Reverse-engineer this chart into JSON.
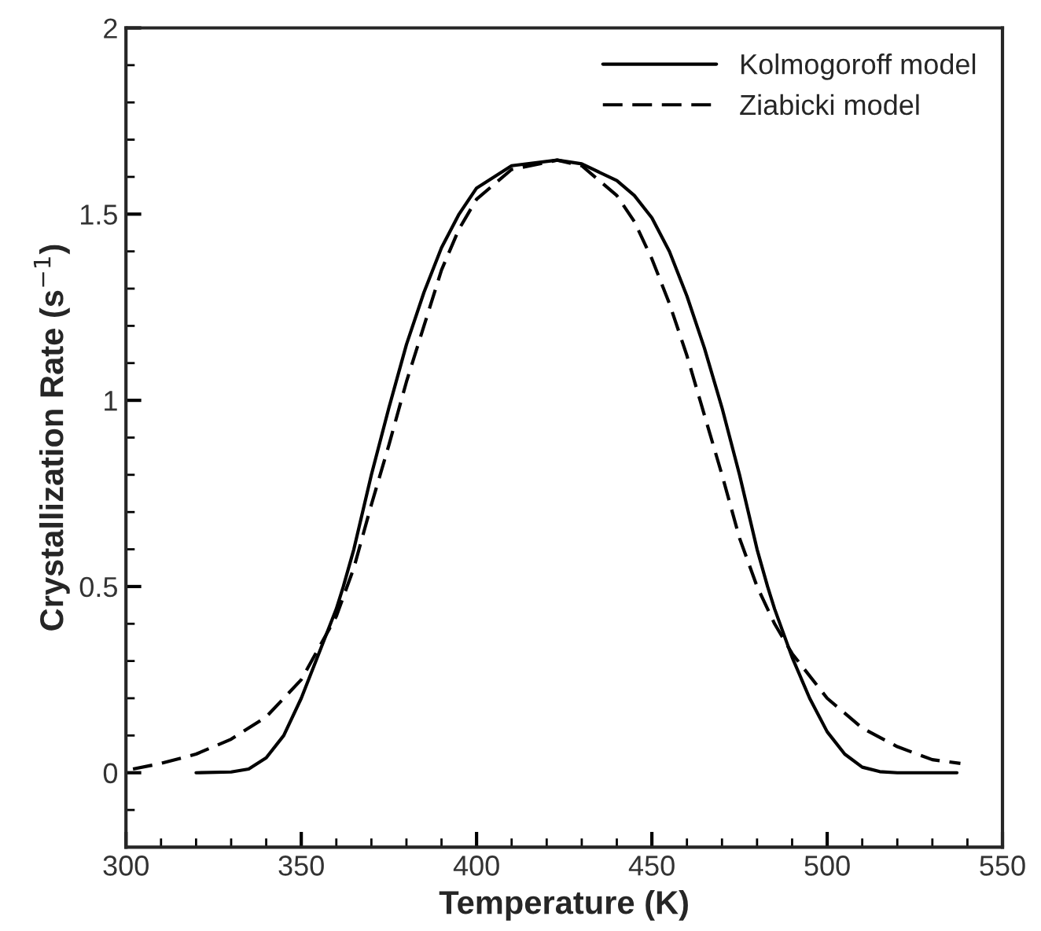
{
  "chart_data": {
    "type": "line",
    "xlabel": "Temperature (K)",
    "ylabel": "Crystallization Rate (s$^{−1}$)",
    "xlim": [
      300,
      550
    ],
    "xticks": [
      300,
      350,
      400,
      450,
      500,
      550
    ],
    "ylim": [
      -0.2,
      2
    ],
    "yticks": [
      0,
      0.5,
      1,
      1.5,
      2
    ],
    "legend": "top right",
    "grid": false,
    "series": [
      {
        "name": "Kolmogoroff model",
        "color": "#000000",
        "line_style": "solid",
        "x": [
          320,
          330,
          335,
          340,
          345,
          350,
          355,
          360,
          362,
          365,
          370,
          375,
          380,
          385,
          390,
          395,
          400,
          410,
          423,
          430,
          440,
          445,
          450,
          455,
          460,
          465,
          470,
          475,
          480,
          483,
          485,
          490,
          495,
          500,
          505,
          510,
          515,
          520,
          537
        ],
        "values": [
          0,
          0.002,
          0.01,
          0.04,
          0.1,
          0.2,
          0.32,
          0.44,
          0.5,
          0.6,
          0.8,
          0.98,
          1.15,
          1.29,
          1.41,
          1.5,
          1.57,
          1.63,
          1.645,
          1.635,
          1.59,
          1.55,
          1.49,
          1.4,
          1.28,
          1.14,
          0.98,
          0.8,
          0.6,
          0.5,
          0.44,
          0.31,
          0.2,
          0.11,
          0.05,
          0.015,
          0.003,
          0,
          0
        ]
      },
      {
        "name": "Ziabicki model",
        "color": "#000000",
        "line_style": "dashed",
        "x": [
          302,
          310,
          320,
          330,
          340,
          350,
          360,
          365,
          370,
          375,
          380,
          385,
          390,
          395,
          400,
          410,
          423,
          430,
          440,
          445,
          450,
          455,
          460,
          465,
          470,
          475,
          480,
          485,
          490,
          500,
          510,
          520,
          530,
          538
        ],
        "values": [
          0.01,
          0.025,
          0.05,
          0.09,
          0.15,
          0.25,
          0.42,
          0.55,
          0.72,
          0.88,
          1.05,
          1.2,
          1.35,
          1.46,
          1.54,
          1.62,
          1.645,
          1.63,
          1.55,
          1.48,
          1.38,
          1.26,
          1.12,
          0.96,
          0.8,
          0.63,
          0.5,
          0.4,
          0.32,
          0.2,
          0.12,
          0.07,
          0.035,
          0.025
        ]
      }
    ]
  }
}
